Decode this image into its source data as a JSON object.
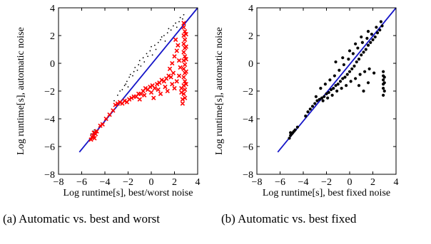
{
  "chart_data": [
    {
      "type": "scatter",
      "xlabel": "Log runtime[s], best/worst noise",
      "ylabel": "Log runtime[s], automatic noise",
      "xlim": [
        -8,
        4
      ],
      "ylim": [
        -8,
        4
      ],
      "xticks": [
        -8,
        -6,
        -4,
        -2,
        0,
        2,
        4
      ],
      "yticks": [
        -8,
        -6,
        -4,
        -2,
        0,
        2,
        4
      ],
      "reference_line": {
        "x": [
          -6.2,
          4
        ],
        "y": [
          -6.4,
          4
        ],
        "color": "#1515c8"
      },
      "series": [
        {
          "marker": "dot",
          "color": "#000000",
          "points": [
            [
              -5.2,
              -5.1
            ],
            [
              -5.0,
              -4.9
            ],
            [
              -4.9,
              -4.8
            ],
            [
              -3.2,
              -2.7
            ],
            [
              -2.9,
              -2.3
            ],
            [
              -2.7,
              -2.0
            ],
            [
              -2.5,
              -1.9
            ],
            [
              -2.3,
              -1.6
            ],
            [
              -2.2,
              -1.5
            ],
            [
              -2.1,
              -1.3
            ],
            [
              -2.0,
              -1.7
            ],
            [
              -1.9,
              -1.0
            ],
            [
              -1.8,
              -0.8
            ],
            [
              -1.6,
              -0.9
            ],
            [
              -1.5,
              -0.6
            ],
            [
              -1.4,
              -0.3
            ],
            [
              -1.2,
              -0.5
            ],
            [
              -1.1,
              -0.1
            ],
            [
              -1.0,
              0.2
            ],
            [
              -0.9,
              -0.2
            ],
            [
              -0.7,
              0.4
            ],
            [
              -0.6,
              0.1
            ],
            [
              -0.4,
              0.7
            ],
            [
              -0.3,
              0.5
            ],
            [
              -0.1,
              0.9
            ],
            [
              0.0,
              1.2
            ],
            [
              0.1,
              0.6
            ],
            [
              0.3,
              1.3
            ],
            [
              0.4,
              1.0
            ],
            [
              0.6,
              1.5
            ],
            [
              0.8,
              1.7
            ],
            [
              0.9,
              1.9
            ],
            [
              1.1,
              2.0
            ],
            [
              1.2,
              1.6
            ],
            [
              1.4,
              2.2
            ],
            [
              1.5,
              2.5
            ],
            [
              1.7,
              2.4
            ],
            [
              1.9,
              2.7
            ],
            [
              2.1,
              2.9
            ],
            [
              2.2,
              2.6
            ],
            [
              2.4,
              3.0
            ],
            [
              2.5,
              3.3
            ],
            [
              2.7,
              3.2
            ],
            [
              2.8,
              3.5
            ]
          ]
        },
        {
          "marker": "x",
          "color": "#ff0000",
          "points": [
            [
              -5.2,
              -5.5
            ],
            [
              -5.1,
              -5.3
            ],
            [
              -5.0,
              -5.2
            ],
            [
              -4.95,
              -5.0
            ],
            [
              -4.9,
              -5.4
            ],
            [
              -4.8,
              -5.1
            ],
            [
              -4.7,
              -4.9
            ],
            [
              -4.4,
              -4.5
            ],
            [
              -4.2,
              -4.4
            ],
            [
              -3.9,
              -4.0
            ],
            [
              -3.6,
              -3.7
            ],
            [
              -3.3,
              -3.4
            ],
            [
              -3.1,
              -3.0
            ],
            [
              -2.9,
              -2.9
            ],
            [
              -2.7,
              -2.8
            ],
            [
              -2.5,
              -2.9
            ],
            [
              -2.3,
              -2.7
            ],
            [
              -2.1,
              -2.8
            ],
            [
              -1.9,
              -2.6
            ],
            [
              -1.7,
              -2.5
            ],
            [
              -1.5,
              -2.4
            ],
            [
              -1.3,
              -2.4
            ],
            [
              -1.1,
              -2.2
            ],
            [
              -0.9,
              -2.2
            ],
            [
              -0.7,
              -2.0
            ],
            [
              -0.5,
              -1.8
            ],
            [
              -0.3,
              -1.9
            ],
            [
              -0.1,
              -1.7
            ],
            [
              0.1,
              -1.6
            ],
            [
              0.3,
              -1.8
            ],
            [
              0.5,
              -1.5
            ],
            [
              0.7,
              -1.4
            ],
            [
              0.9,
              -1.2
            ],
            [
              1.1,
              -1.3
            ],
            [
              1.3,
              -1.1
            ],
            [
              1.5,
              -0.9
            ],
            [
              1.7,
              -1.0
            ],
            [
              1.9,
              -0.7
            ],
            [
              -1.0,
              -2.6
            ],
            [
              -0.6,
              -2.3
            ],
            [
              0.0,
              -2.1
            ],
            [
              0.6,
              -1.9
            ],
            [
              1.2,
              -1.7
            ],
            [
              1.8,
              -1.5
            ],
            [
              0.2,
              -2.5
            ],
            [
              0.8,
              -2.2
            ],
            [
              1.4,
              -2.0
            ],
            [
              2.0,
              -1.8
            ],
            [
              2.1,
              1.7
            ],
            [
              2.3,
              1.3
            ],
            [
              2.4,
              0.2
            ],
            [
              2.5,
              -0.3
            ],
            [
              2.2,
              0.9
            ],
            [
              2.0,
              0.5
            ],
            [
              1.8,
              0.0
            ],
            [
              1.6,
              -0.4
            ],
            [
              2.4,
              -0.9
            ],
            [
              2.2,
              -1.3
            ],
            [
              2.6,
              -1.8
            ],
            [
              2.6,
              -2.1
            ],
            [
              2.8,
              2.9
            ],
            [
              2.8,
              2.6
            ],
            [
              2.9,
              2.3
            ],
            [
              2.8,
              2.0
            ],
            [
              2.9,
              1.7
            ],
            [
              2.8,
              1.4
            ],
            [
              2.9,
              1.1
            ],
            [
              2.8,
              0.8
            ],
            [
              2.9,
              0.5
            ],
            [
              2.8,
              0.2
            ],
            [
              2.9,
              -0.1
            ],
            [
              2.8,
              -0.4
            ],
            [
              2.9,
              -0.7
            ],
            [
              2.8,
              -1.0
            ],
            [
              2.9,
              -1.3
            ],
            [
              2.8,
              -1.6
            ],
            [
              2.9,
              -1.9
            ],
            [
              2.8,
              -2.2
            ],
            [
              2.9,
              -2.5
            ],
            [
              3.0,
              -1.5
            ],
            [
              3.0,
              -0.6
            ],
            [
              3.0,
              0.3
            ],
            [
              3.0,
              1.2
            ],
            [
              3.0,
              2.1
            ],
            [
              2.7,
              -2.6
            ],
            [
              2.7,
              -2.9
            ]
          ]
        }
      ]
    },
    {
      "type": "scatter",
      "xlabel": "Log runtime[s], best fixed noise",
      "ylabel": "Log runtime[s], automatic noise",
      "xlim": [
        -8,
        4
      ],
      "ylim": [
        -8,
        4
      ],
      "xticks": [
        -8,
        -6,
        -4,
        -2,
        0,
        2,
        4
      ],
      "yticks": [
        -8,
        -6,
        -4,
        -2,
        0,
        2,
        4
      ],
      "reference_line": {
        "x": [
          -6.2,
          4
        ],
        "y": [
          -6.4,
          4
        ],
        "color": "#1515c8"
      },
      "series": [
        {
          "marker": "dot",
          "color": "#000000",
          "points": [
            [
              -5.2,
              -5.4
            ],
            [
              -5.1,
              -5.2
            ],
            [
              -5.0,
              -5.1
            ],
            [
              -4.9,
              -5.0
            ],
            [
              -4.8,
              -4.9
            ],
            [
              -5.1,
              -5.0
            ],
            [
              -4.7,
              -4.8
            ],
            [
              -4.5,
              -4.6
            ],
            [
              -3.8,
              -3.8
            ],
            [
              -3.6,
              -3.5
            ],
            [
              -3.4,
              -3.3
            ],
            [
              -3.2,
              -3.1
            ],
            [
              -3.0,
              -2.9
            ],
            [
              -2.8,
              -2.7
            ],
            [
              -2.6,
              -2.6
            ],
            [
              -2.4,
              -2.5
            ],
            [
              -2.2,
              -2.4
            ],
            [
              -2.0,
              -2.2
            ],
            [
              -1.8,
              -2.1
            ],
            [
              -1.6,
              -1.9
            ],
            [
              -1.4,
              -1.8
            ],
            [
              -1.2,
              -1.6
            ],
            [
              -1.0,
              -1.5
            ],
            [
              -0.8,
              -1.3
            ],
            [
              -0.6,
              -1.1
            ],
            [
              -0.4,
              -1.0
            ],
            [
              -0.2,
              -0.8
            ],
            [
              0.0,
              -0.6
            ],
            [
              0.2,
              -0.4
            ],
            [
              0.4,
              -0.2
            ],
            [
              0.6,
              0.1
            ],
            [
              0.8,
              0.3
            ],
            [
              1.0,
              0.6
            ],
            [
              1.2,
              0.8
            ],
            [
              1.4,
              1.0
            ],
            [
              1.6,
              1.3
            ],
            [
              1.8,
              1.5
            ],
            [
              2.0,
              1.7
            ],
            [
              2.2,
              1.9
            ],
            [
              2.4,
              2.2
            ],
            [
              2.6,
              2.4
            ],
            [
              2.8,
              2.7
            ],
            [
              -2.5,
              -1.8
            ],
            [
              -2.1,
              -1.5
            ],
            [
              -1.7,
              -1.2
            ],
            [
              -1.3,
              -0.9
            ],
            [
              -0.9,
              -0.5
            ],
            [
              -0.5,
              -0.1
            ],
            [
              -0.1,
              0.3
            ],
            [
              0.3,
              0.7
            ],
            [
              0.7,
              1.1
            ],
            [
              1.1,
              1.5
            ],
            [
              1.5,
              1.8
            ],
            [
              1.9,
              2.1
            ],
            [
              2.3,
              2.6
            ],
            [
              2.7,
              3.0
            ],
            [
              -2.9,
              -2.4
            ],
            [
              -2.3,
              -2.7
            ],
            [
              -1.9,
              -2.5
            ],
            [
              -1.5,
              -2.3
            ],
            [
              -1.1,
              -2.0
            ],
            [
              -0.7,
              -1.8
            ],
            [
              -0.3,
              -1.6
            ],
            [
              0.1,
              -1.3
            ],
            [
              0.5,
              -1.1
            ],
            [
              0.9,
              -0.8
            ],
            [
              1.3,
              -0.6
            ],
            [
              1.7,
              -0.4
            ],
            [
              0.8,
              -1.6
            ],
            [
              1.2,
              -2.0
            ],
            [
              1.6,
              -1.4
            ],
            [
              2.1,
              -0.7
            ],
            [
              2.9,
              -0.6
            ],
            [
              2.9,
              -0.9
            ],
            [
              2.9,
              -1.2
            ],
            [
              2.9,
              -1.5
            ],
            [
              2.9,
              -1.8
            ],
            [
              3.0,
              -1.0
            ],
            [
              3.0,
              -1.4
            ],
            [
              3.0,
              -2.0
            ],
            [
              2.9,
              -2.3
            ],
            [
              -1.2,
              0.1
            ],
            [
              -0.6,
              0.4
            ],
            [
              0.0,
              0.9
            ],
            [
              0.5,
              1.4
            ],
            [
              1.0,
              1.9
            ],
            [
              1.6,
              2.3
            ]
          ]
        }
      ]
    }
  ],
  "captions": {
    "a": "(a) Automatic vs. best and worst",
    "b": "(b) Automatic vs. best fixed"
  }
}
